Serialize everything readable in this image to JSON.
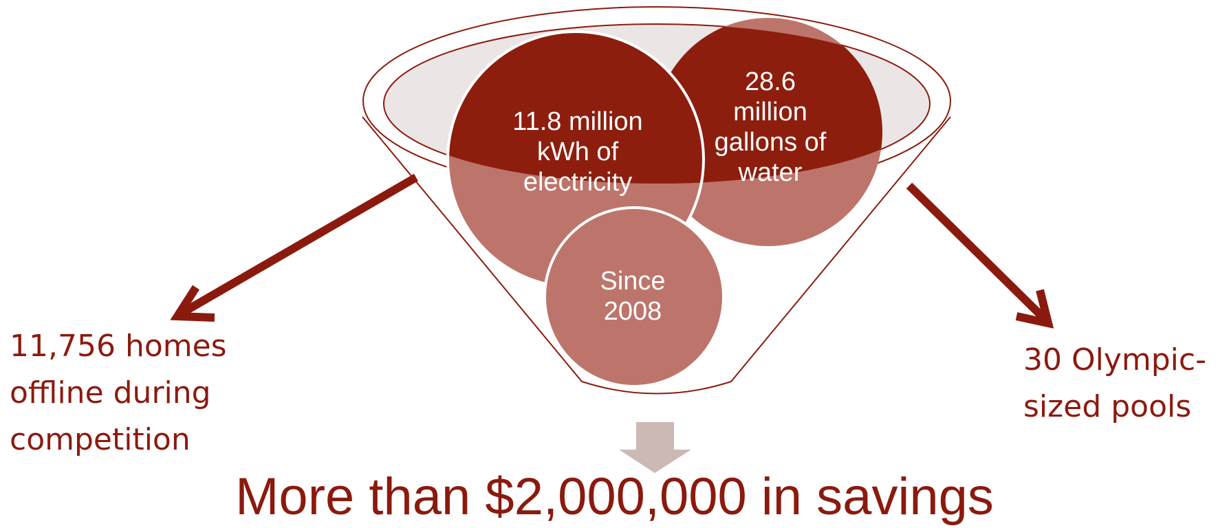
{
  "circles": {
    "electricity": "11.8 million\nkWh of\nelectricity",
    "water": "28.6\nmillion\ngallons of\nwater",
    "since": "Since\n2008"
  },
  "left_outcome": "11,756 homes\noffline during\ncompetition",
  "right_outcome": "30 Olympic-\nsized pools",
  "headline": "More than $2,000,000 in savings",
  "colors": {
    "dark_red": "#8b1a0e",
    "circle_dark": "#8d1e0e",
    "circle_light": "#bd756b",
    "down_arrow": "#cdb9b4"
  }
}
